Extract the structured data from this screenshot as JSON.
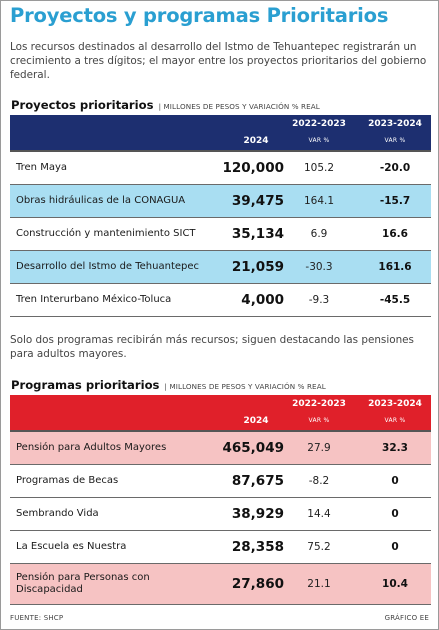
{
  "title": "Proyectos y programas Prioritarios",
  "intro": "Los recursos destinados al desarrollo del Istmo de Tehuantepec registrarán un crecimiento a tres dígitos; el mayor entre los proyectos prioritarios del gobierno federal.",
  "section1": {
    "title": "Proyectos prioritarios",
    "subtitle": "| MILLONES DE PESOS Y VARIACIÓN % REAL",
    "header": {
      "col2024": "2024",
      "col1": "2022-2023",
      "col2": "2023-2024",
      "var": "VAR %"
    },
    "rows": [
      {
        "name": "Tren Maya",
        "value": "120,000",
        "var1": "105.2",
        "var2": "-20.0"
      },
      {
        "name": "Obras hidráulicas de la CONAGUA",
        "value": "39,475",
        "var1": "164.1",
        "var2": "-15.7"
      },
      {
        "name": "Construcción y mantenimiento SICT",
        "value": "35,134",
        "var1": "6.9",
        "var2": "16.6"
      },
      {
        "name": "Desarrollo del Istmo de Tehuantepec",
        "value": "21,059",
        "var1": "-30.3",
        "var2": "161.6"
      },
      {
        "name": "Tren Interurbano México-Toluca",
        "value": "4,000",
        "var1": "-9.3",
        "var2": "-45.5"
      }
    ]
  },
  "mid_text": "Solo dos programas recibirán más recursos; siguen destacando las pensiones para adultos mayores.",
  "section2": {
    "title": "Programas prioritarios",
    "subtitle": "| MILLONES DE PESOS Y VARIACIÓN % REAL",
    "header": {
      "col2024": "2024",
      "col1": "2022-2023",
      "col2": "2023-2024",
      "var": "VAR %"
    },
    "rows": [
      {
        "name": "Pensión para Adultos Mayores",
        "value": "465,049",
        "var1": "27.9",
        "var2": "32.3"
      },
      {
        "name": "Programas de Becas",
        "value": "87,675",
        "var1": "-8.2",
        "var2": "0"
      },
      {
        "name": "Sembrando Vida",
        "value": "38,929",
        "var1": "14.4",
        "var2": "0"
      },
      {
        "name": "La Escuela es Nuestra",
        "value": "28,358",
        "var1": "75.2",
        "var2": "0"
      },
      {
        "name": "Pensión para Personas con Discapacidad",
        "value": "27,860",
        "var1": "21.1",
        "var2": "10.4"
      }
    ]
  },
  "footer": {
    "source": "FUENTE: SHCP",
    "credit": "GRÁFICO EE"
  },
  "colors": {
    "title": "#2a9fd1",
    "header_blue": "#1d2f70",
    "header_red": "#e0202a",
    "highlight_blue": "#a9def2",
    "highlight_red": "#f6c3c3"
  }
}
